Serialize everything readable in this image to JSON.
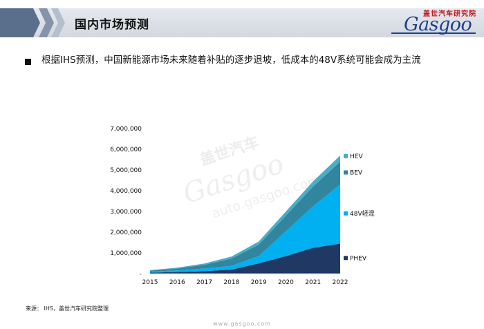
{
  "header": {
    "title": "国内市场预测",
    "logo_cn": "盖世汽车研究院",
    "logo_word": "Gasgoo"
  },
  "bullet": {
    "text": "根据IHS预测，中国新能源市场未来随着补贴的逐步退坡，低成本的48V系统可能会成为主流"
  },
  "watermark": {
    "cn": "盖世汽车",
    "word": "Gasgoo",
    "url": "auto.gasgoo.com"
  },
  "chart_data": {
    "type": "area",
    "stacked": true,
    "title": "",
    "xlabel": "",
    "ylabel": "",
    "categories": [
      "2015",
      "2016",
      "2017",
      "2018",
      "2019",
      "2020",
      "2021",
      "2022"
    ],
    "ylim": [
      0,
      7000000
    ],
    "yticks": [
      "7,000,000",
      "6,000,000",
      "5,000,000",
      "4,000,000",
      "3,000,000",
      "2,000,000",
      "1,000,000",
      "-"
    ],
    "series": [
      {
        "name": "PHEV",
        "color": "#1f3864",
        "values": [
          50000,
          80000,
          120000,
          200000,
          500000,
          850000,
          1250000,
          1450000
        ]
      },
      {
        "name": "48V轻混",
        "color": "#00b0f0",
        "values": [
          50000,
          80000,
          130000,
          180000,
          350000,
          1200000,
          2000000,
          2850000
        ]
      },
      {
        "name": "BEV",
        "color": "#31859c",
        "values": [
          50000,
          90000,
          180000,
          350000,
          550000,
          750000,
          950000,
          1100000
        ]
      },
      {
        "name": "HEV",
        "color": "#4bacc6",
        "values": [
          20000,
          40000,
          60000,
          100000,
          150000,
          200000,
          250000,
          300000
        ]
      }
    ],
    "legend_position": "right"
  },
  "source_note": "来源： IHS，盖世汽车研究院整理",
  "footer_url": "www.gasgoo.com"
}
